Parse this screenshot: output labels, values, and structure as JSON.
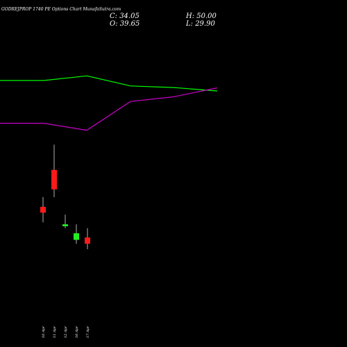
{
  "header": {
    "title": "GODREJPROP 1740 PE Options Chart MunafaSutra.com",
    "close": "C: 34.05",
    "open": "O: 39.65",
    "high": "H: 50.00",
    "low": "L: 29.90"
  },
  "colors": {
    "background": "#000000",
    "up": "#22ee22",
    "down": "#ff1a1a",
    "green_line": "#00ff00",
    "magenta_line": "#cc00cc",
    "wick": "#dddddd"
  },
  "chart_data": {
    "type": "candlestick",
    "price_range": [
      15,
      90
    ],
    "candles": [
      {
        "label": "10 Apr",
        "open": 47.5,
        "close": 46.0,
        "high": 50.0,
        "low": 43.5
      },
      {
        "label": "11 Apr",
        "open": 57.0,
        "close": 52.0,
        "high": 63.5,
        "low": 50.0
      },
      {
        "label": "12 Apr",
        "open": 42.5,
        "close": 43.0,
        "high": 45.5,
        "low": 42.0
      },
      {
        "label": "16 Apr",
        "open": 39.0,
        "close": 40.7,
        "high": 43.0,
        "low": 38.0
      },
      {
        "label": "17 Apr",
        "open": 39.6,
        "close": 38.0,
        "high": 42.0,
        "low": 36.6
      }
    ],
    "green_series": [
      80.0,
      80.0,
      81.2,
      78.6,
      78.2,
      77.3
    ],
    "magenta_series": [
      69.0,
      69.0,
      67.2,
      74.6,
      75.8,
      78.1
    ]
  }
}
